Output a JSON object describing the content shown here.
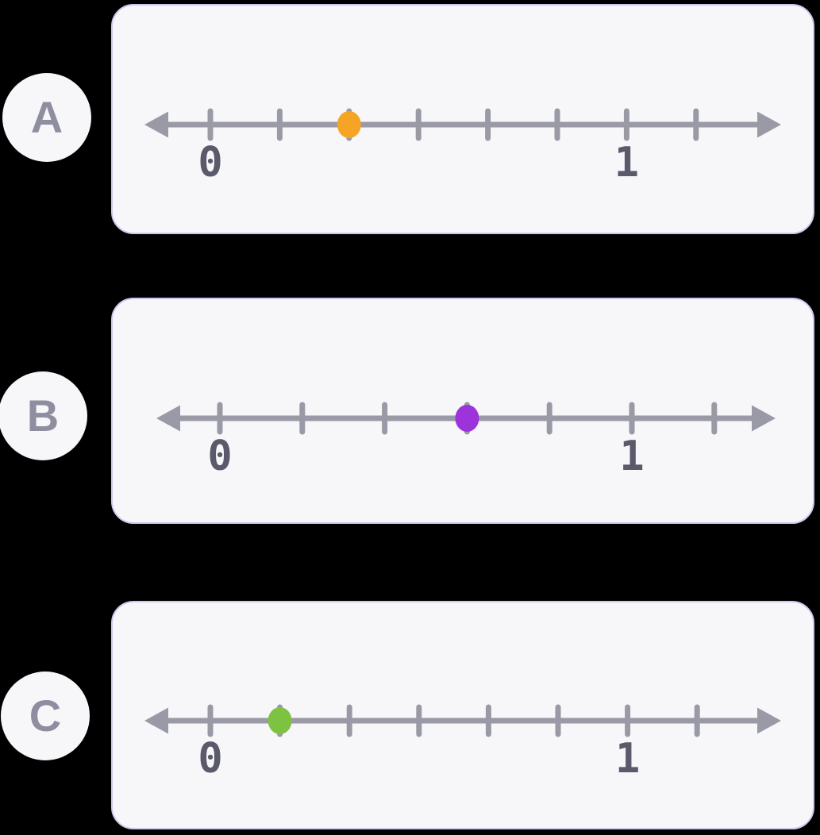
{
  "colors": {
    "background": "#000000",
    "card_bg": "#f7f7fa",
    "card_border": "#c9c9ec",
    "line": "#9a9aa6",
    "digit_label": "#5a5a6b",
    "letter_label": "#8e8ea0",
    "badge_bg": "#f7f7fa"
  },
  "cards": [
    {
      "label": "A",
      "dot_color": "#F5A425",
      "tick_count": 8,
      "zero_tick_index": 0,
      "one_tick_index": 6,
      "dot_tick_index": 2,
      "tick_interval": "1/6",
      "point_value": "1/3",
      "zero_label": "0",
      "one_label": "1"
    },
    {
      "label": "B",
      "dot_color": "#9C33DB",
      "tick_count": 7,
      "zero_tick_index": 0,
      "one_tick_index": 5,
      "dot_tick_index": 3,
      "tick_interval": "1/5",
      "point_value": "3/5",
      "zero_label": "0",
      "one_label": "1"
    },
    {
      "label": "C",
      "dot_color": "#7EC242",
      "tick_count": 8,
      "zero_tick_index": 0,
      "one_tick_index": 6,
      "dot_tick_index": 1,
      "tick_interval": "1/6",
      "point_value": "1/6",
      "zero_label": "0",
      "one_label": "1"
    }
  ]
}
